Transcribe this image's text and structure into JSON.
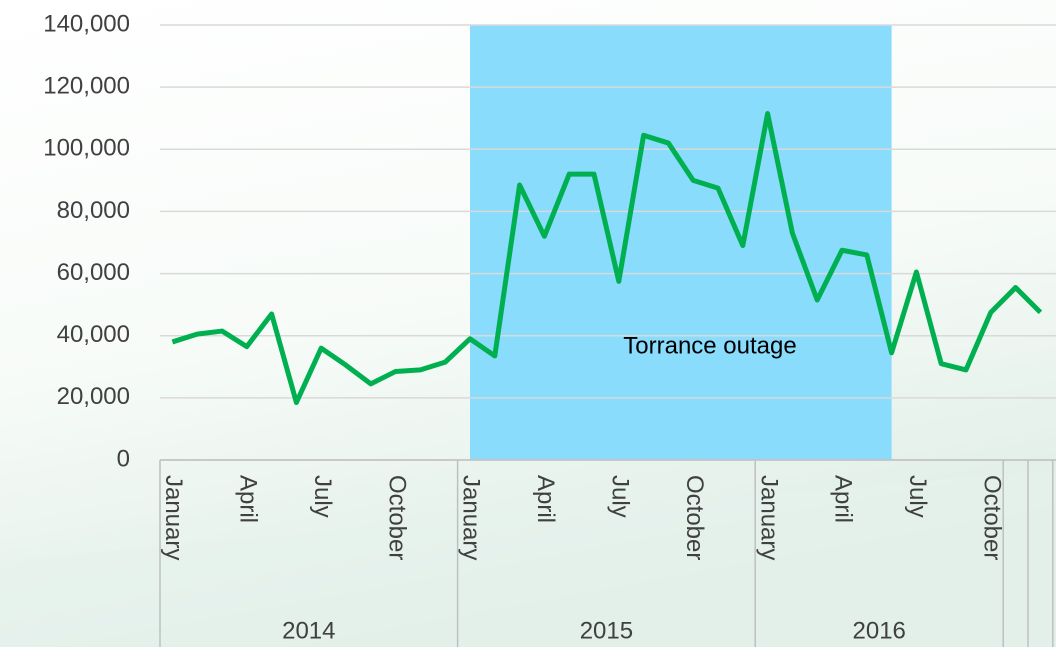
{
  "chart_data": {
    "type": "line",
    "categories": [
      "January",
      null,
      null,
      "April",
      null,
      null,
      "July",
      null,
      null,
      "October",
      null,
      null,
      "January",
      null,
      null,
      "April",
      null,
      null,
      "July",
      null,
      null,
      "October",
      null,
      null,
      "January",
      null,
      null,
      "April",
      null,
      null,
      "July",
      null,
      null,
      "October",
      null,
      null
    ],
    "groups": [
      {
        "label": "2014",
        "count": 12
      },
      {
        "label": "2015",
        "count": 12
      },
      {
        "label": "2016",
        "count": 10
      },
      {
        "label": null,
        "count": 1
      },
      {
        "label": null,
        "count": 1
      }
    ],
    "series": [
      {
        "name": null,
        "color": "#00b050",
        "values": [
          38000,
          40500,
          41500,
          36500,
          47000,
          18500,
          36000,
          30500,
          24500,
          28500,
          29000,
          31500,
          39000,
          33500,
          88500,
          72000,
          92000,
          92000,
          57500,
          104500,
          102000,
          90000,
          87500,
          69000,
          111500,
          73000,
          51500,
          67500,
          66000,
          34500,
          60500,
          31000,
          29000,
          47500,
          55500,
          47500
        ]
      }
    ],
    "highlight": {
      "label": "Torrance outage",
      "from": 12,
      "to": 29,
      "color": "#89dcfb"
    },
    "ylim": [
      0,
      140000
    ],
    "yticks": [
      0,
      {
        "value": 20000,
        "label": "20,000"
      },
      {
        "value": 40000,
        "label": "40,000"
      },
      {
        "value": 60000,
        "label": "60,000"
      },
      {
        "value": 80000,
        "label": "80,000"
      },
      {
        "value": 100000,
        "label": "100,000"
      },
      {
        "value": 120000,
        "label": "120,000"
      },
      {
        "value": 140000,
        "label": "140,000"
      }
    ],
    "grid": true
  }
}
